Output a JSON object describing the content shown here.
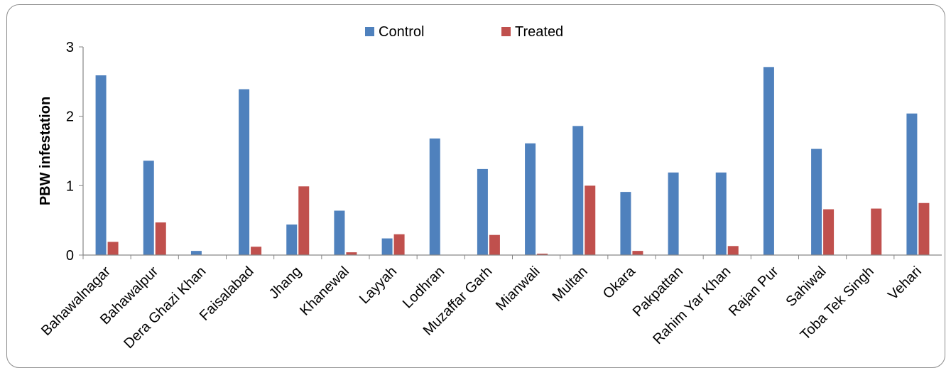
{
  "chart_data": {
    "type": "bar",
    "title": "",
    "xlabel": "",
    "ylabel": "PBW infestation",
    "ylim": [
      0,
      3
    ],
    "yticks": [
      "0",
      "1",
      "2",
      "3"
    ],
    "grid": false,
    "legend_position": "top",
    "categories": [
      "Bahawalnagar",
      "Bahawalpur",
      "Dera Ghazi Khan",
      "Faisalabad",
      "Jhang",
      "Khanewal",
      "Layyah",
      "Lodhran",
      "Muzaffar Garh",
      "Mianwali",
      "Multan",
      "Okara",
      "Pakpattan",
      "Rahim Yar Khan",
      "Rajan Pur",
      "Sahiwal",
      "Toba Tek Singh",
      "Vehari"
    ],
    "series": [
      {
        "name": "Control",
        "color": "#4f81bd",
        "values": [
          2.59,
          1.36,
          0.06,
          2.39,
          0.44,
          0.64,
          0.24,
          1.68,
          1.24,
          1.61,
          1.86,
          0.91,
          1.19,
          1.19,
          2.71,
          1.53,
          0,
          2.04
        ]
      },
      {
        "name": "Treated",
        "color": "#c0504d",
        "values": [
          0.19,
          0.47,
          0,
          0.12,
          0.99,
          0.04,
          0.3,
          0,
          0.29,
          0.02,
          1.0,
          0.06,
          0,
          0.13,
          0,
          0.66,
          0.67,
          0.75
        ]
      }
    ]
  }
}
